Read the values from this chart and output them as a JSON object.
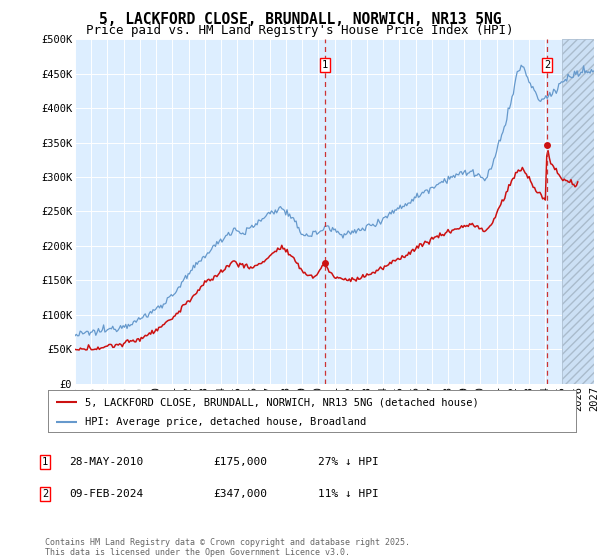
{
  "title1": "5, LACKFORD CLOSE, BRUNDALL, NORWICH, NR13 5NG",
  "title2": "Price paid vs. HM Land Registry's House Price Index (HPI)",
  "ylim": [
    0,
    500000
  ],
  "yticks": [
    0,
    50000,
    100000,
    150000,
    200000,
    250000,
    300000,
    350000,
    400000,
    450000,
    500000
  ],
  "ytick_labels": [
    "£0",
    "£50K",
    "£100K",
    "£150K",
    "£200K",
    "£250K",
    "£300K",
    "£350K",
    "£400K",
    "£450K",
    "£500K"
  ],
  "xlim_start": 1995.0,
  "xlim_end": 2027.0,
  "hpi_color": "#6699cc",
  "price_color": "#cc1111",
  "sale1_x": 2010.41,
  "sale1_y": 175000,
  "sale2_x": 2024.11,
  "sale2_y": 347000,
  "sale1_label": "28-MAY-2010",
  "sale1_price": "£175,000",
  "sale1_hpi": "27% ↓ HPI",
  "sale2_label": "09-FEB-2024",
  "sale2_price": "£347,000",
  "sale2_hpi": "11% ↓ HPI",
  "legend_red": "5, LACKFORD CLOSE, BRUNDALL, NORWICH, NR13 5NG (detached house)",
  "legend_blue": "HPI: Average price, detached house, Broadland",
  "footer": "Contains HM Land Registry data © Crown copyright and database right 2025.\nThis data is licensed under the Open Government Licence v3.0.",
  "background_plot": "#ddeeff",
  "hatch_start": 2025.0,
  "title_fontsize": 10.5,
  "subtitle_fontsize": 9.0,
  "tick_fontsize": 7.5,
  "legend_fontsize": 7.5,
  "annot_fontsize": 8.0,
  "footer_fontsize": 6.0
}
